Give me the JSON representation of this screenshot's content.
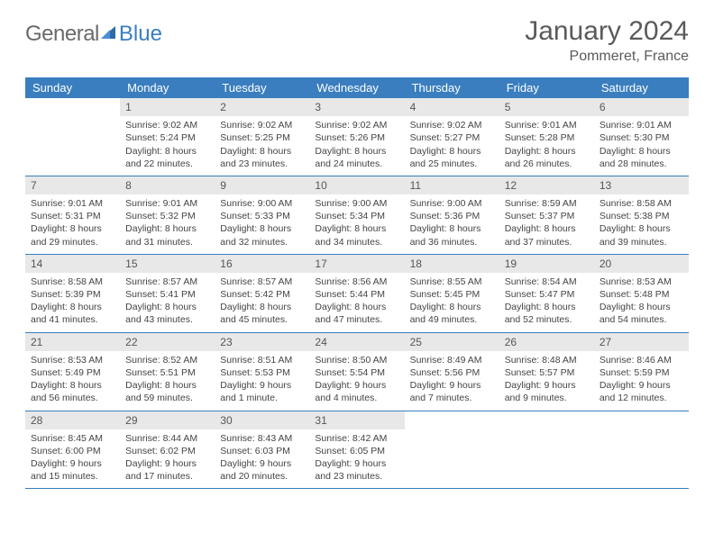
{
  "logo": {
    "text_gray": "General",
    "text_blue": "Blue"
  },
  "title": "January 2024",
  "location": "Pommeret, France",
  "colors": {
    "header_bg": "#3a7ebf",
    "daynum_bg": "#e8e8e8",
    "text": "#444444",
    "title_text": "#5a5a5a",
    "logo_gray": "#6a6a6a",
    "logo_blue": "#3a7ebf",
    "border": "#3a7ebf",
    "background": "#ffffff"
  },
  "typography": {
    "title_fontsize": 30,
    "location_fontsize": 16,
    "dayhead_fontsize": 13,
    "daynum_fontsize": 12,
    "cell_fontsize": 10.5
  },
  "day_headers": [
    "Sunday",
    "Monday",
    "Tuesday",
    "Wednesday",
    "Thursday",
    "Friday",
    "Saturday"
  ],
  "weeks": [
    [
      {
        "n": "",
        "sunrise": "",
        "sunset": "",
        "daylight": ""
      },
      {
        "n": "1",
        "sunrise": "Sunrise: 9:02 AM",
        "sunset": "Sunset: 5:24 PM",
        "daylight": "Daylight: 8 hours and 22 minutes."
      },
      {
        "n": "2",
        "sunrise": "Sunrise: 9:02 AM",
        "sunset": "Sunset: 5:25 PM",
        "daylight": "Daylight: 8 hours and 23 minutes."
      },
      {
        "n": "3",
        "sunrise": "Sunrise: 9:02 AM",
        "sunset": "Sunset: 5:26 PM",
        "daylight": "Daylight: 8 hours and 24 minutes."
      },
      {
        "n": "4",
        "sunrise": "Sunrise: 9:02 AM",
        "sunset": "Sunset: 5:27 PM",
        "daylight": "Daylight: 8 hours and 25 minutes."
      },
      {
        "n": "5",
        "sunrise": "Sunrise: 9:01 AM",
        "sunset": "Sunset: 5:28 PM",
        "daylight": "Daylight: 8 hours and 26 minutes."
      },
      {
        "n": "6",
        "sunrise": "Sunrise: 9:01 AM",
        "sunset": "Sunset: 5:30 PM",
        "daylight": "Daylight: 8 hours and 28 minutes."
      }
    ],
    [
      {
        "n": "7",
        "sunrise": "Sunrise: 9:01 AM",
        "sunset": "Sunset: 5:31 PM",
        "daylight": "Daylight: 8 hours and 29 minutes."
      },
      {
        "n": "8",
        "sunrise": "Sunrise: 9:01 AM",
        "sunset": "Sunset: 5:32 PM",
        "daylight": "Daylight: 8 hours and 31 minutes."
      },
      {
        "n": "9",
        "sunrise": "Sunrise: 9:00 AM",
        "sunset": "Sunset: 5:33 PM",
        "daylight": "Daylight: 8 hours and 32 minutes."
      },
      {
        "n": "10",
        "sunrise": "Sunrise: 9:00 AM",
        "sunset": "Sunset: 5:34 PM",
        "daylight": "Daylight: 8 hours and 34 minutes."
      },
      {
        "n": "11",
        "sunrise": "Sunrise: 9:00 AM",
        "sunset": "Sunset: 5:36 PM",
        "daylight": "Daylight: 8 hours and 36 minutes."
      },
      {
        "n": "12",
        "sunrise": "Sunrise: 8:59 AM",
        "sunset": "Sunset: 5:37 PM",
        "daylight": "Daylight: 8 hours and 37 minutes."
      },
      {
        "n": "13",
        "sunrise": "Sunrise: 8:58 AM",
        "sunset": "Sunset: 5:38 PM",
        "daylight": "Daylight: 8 hours and 39 minutes."
      }
    ],
    [
      {
        "n": "14",
        "sunrise": "Sunrise: 8:58 AM",
        "sunset": "Sunset: 5:39 PM",
        "daylight": "Daylight: 8 hours and 41 minutes."
      },
      {
        "n": "15",
        "sunrise": "Sunrise: 8:57 AM",
        "sunset": "Sunset: 5:41 PM",
        "daylight": "Daylight: 8 hours and 43 minutes."
      },
      {
        "n": "16",
        "sunrise": "Sunrise: 8:57 AM",
        "sunset": "Sunset: 5:42 PM",
        "daylight": "Daylight: 8 hours and 45 minutes."
      },
      {
        "n": "17",
        "sunrise": "Sunrise: 8:56 AM",
        "sunset": "Sunset: 5:44 PM",
        "daylight": "Daylight: 8 hours and 47 minutes."
      },
      {
        "n": "18",
        "sunrise": "Sunrise: 8:55 AM",
        "sunset": "Sunset: 5:45 PM",
        "daylight": "Daylight: 8 hours and 49 minutes."
      },
      {
        "n": "19",
        "sunrise": "Sunrise: 8:54 AM",
        "sunset": "Sunset: 5:47 PM",
        "daylight": "Daylight: 8 hours and 52 minutes."
      },
      {
        "n": "20",
        "sunrise": "Sunrise: 8:53 AM",
        "sunset": "Sunset: 5:48 PM",
        "daylight": "Daylight: 8 hours and 54 minutes."
      }
    ],
    [
      {
        "n": "21",
        "sunrise": "Sunrise: 8:53 AM",
        "sunset": "Sunset: 5:49 PM",
        "daylight": "Daylight: 8 hours and 56 minutes."
      },
      {
        "n": "22",
        "sunrise": "Sunrise: 8:52 AM",
        "sunset": "Sunset: 5:51 PM",
        "daylight": "Daylight: 8 hours and 59 minutes."
      },
      {
        "n": "23",
        "sunrise": "Sunrise: 8:51 AM",
        "sunset": "Sunset: 5:53 PM",
        "daylight": "Daylight: 9 hours and 1 minute."
      },
      {
        "n": "24",
        "sunrise": "Sunrise: 8:50 AM",
        "sunset": "Sunset: 5:54 PM",
        "daylight": "Daylight: 9 hours and 4 minutes."
      },
      {
        "n": "25",
        "sunrise": "Sunrise: 8:49 AM",
        "sunset": "Sunset: 5:56 PM",
        "daylight": "Daylight: 9 hours and 7 minutes."
      },
      {
        "n": "26",
        "sunrise": "Sunrise: 8:48 AM",
        "sunset": "Sunset: 5:57 PM",
        "daylight": "Daylight: 9 hours and 9 minutes."
      },
      {
        "n": "27",
        "sunrise": "Sunrise: 8:46 AM",
        "sunset": "Sunset: 5:59 PM",
        "daylight": "Daylight: 9 hours and 12 minutes."
      }
    ],
    [
      {
        "n": "28",
        "sunrise": "Sunrise: 8:45 AM",
        "sunset": "Sunset: 6:00 PM",
        "daylight": "Daylight: 9 hours and 15 minutes."
      },
      {
        "n": "29",
        "sunrise": "Sunrise: 8:44 AM",
        "sunset": "Sunset: 6:02 PM",
        "daylight": "Daylight: 9 hours and 17 minutes."
      },
      {
        "n": "30",
        "sunrise": "Sunrise: 8:43 AM",
        "sunset": "Sunset: 6:03 PM",
        "daylight": "Daylight: 9 hours and 20 minutes."
      },
      {
        "n": "31",
        "sunrise": "Sunrise: 8:42 AM",
        "sunset": "Sunset: 6:05 PM",
        "daylight": "Daylight: 9 hours and 23 minutes."
      },
      {
        "n": "",
        "sunrise": "",
        "sunset": "",
        "daylight": ""
      },
      {
        "n": "",
        "sunrise": "",
        "sunset": "",
        "daylight": ""
      },
      {
        "n": "",
        "sunrise": "",
        "sunset": "",
        "daylight": ""
      }
    ]
  ]
}
